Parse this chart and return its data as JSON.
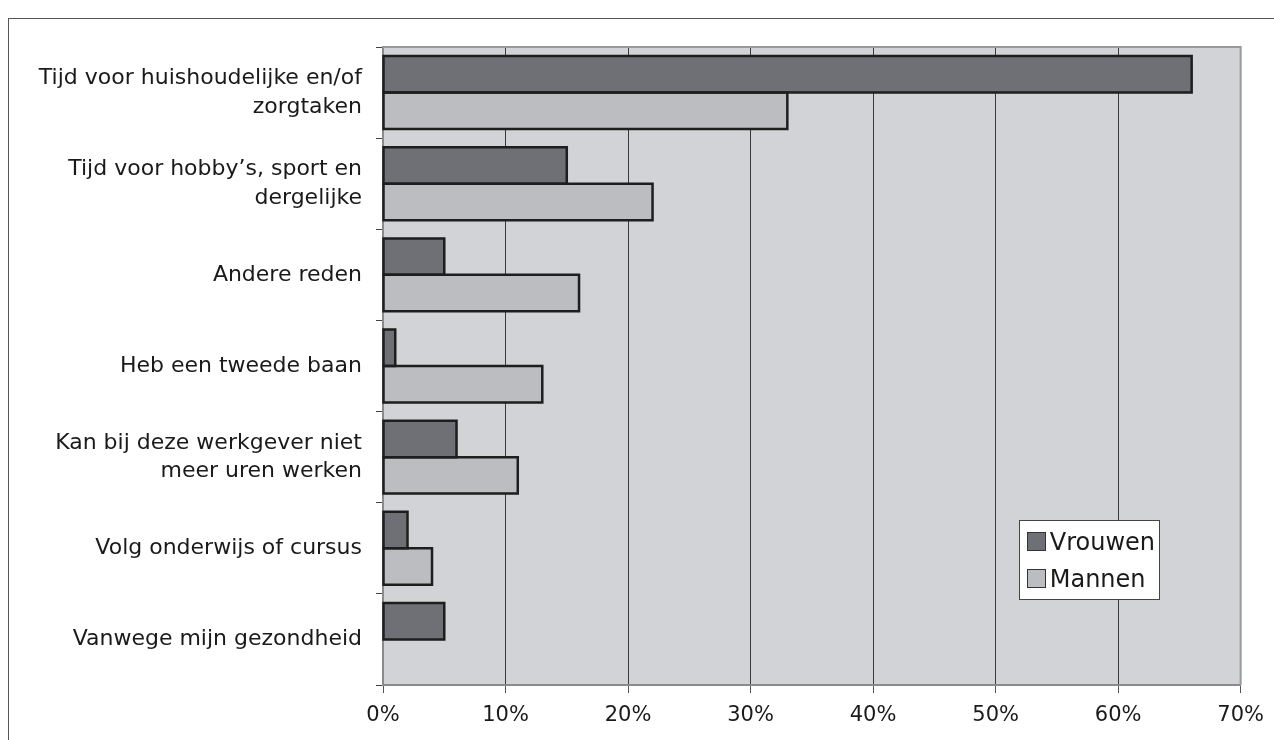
{
  "chart_data": {
    "type": "bar",
    "orientation": "horizontal",
    "categories": [
      "Tijd voor huishoudelijke en/of zorgtaken",
      "Tijd voor hobby’s, sport en dergelijke",
      "Andere reden",
      "Heb een tweede baan",
      "Kan bij deze werkgever niet meer uren werken",
      "Volg onderwijs of cursus",
      "Vanwege mijn gezondheid"
    ],
    "series": [
      {
        "name": "Vrouwen",
        "color": "#6f7075",
        "values": [
          66,
          15,
          5,
          1,
          6,
          2,
          5
        ]
      },
      {
        "name": "Mannen",
        "color": "#bcbdc1",
        "values": [
          33,
          22,
          16,
          13,
          11,
          4,
          null
        ]
      }
    ],
    "xlim": [
      0,
      70
    ],
    "xticks": [
      {
        "value": 0,
        "label": "0%"
      },
      {
        "value": 10,
        "label": "10%"
      },
      {
        "value": 20,
        "label": "20%"
      },
      {
        "value": 30,
        "label": "30%"
      },
      {
        "value": 40,
        "label": "40%"
      },
      {
        "value": 50,
        "label": "50%"
      },
      {
        "value": 60,
        "label": "60%"
      },
      {
        "value": 70,
        "label": "70%"
      }
    ],
    "grid": "x",
    "legend": "bottom right"
  }
}
